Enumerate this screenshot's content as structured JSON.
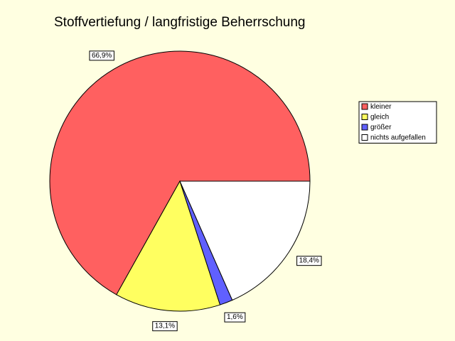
{
  "chart_data": {
    "type": "pie",
    "title": "Stoffvertiefung / langfristige Beherrschung",
    "categories": [
      "kleiner",
      "gleich",
      "größer",
      "nichts aufgefallen"
    ],
    "values": [
      66.9,
      13.1,
      1.6,
      18.4
    ],
    "value_labels": [
      "66,9%",
      "13,1%",
      "1,6%",
      "18,4%"
    ],
    "colors": [
      "#ff6060",
      "#ffff60",
      "#6060ff",
      "#ffffff"
    ],
    "legend": "right"
  }
}
